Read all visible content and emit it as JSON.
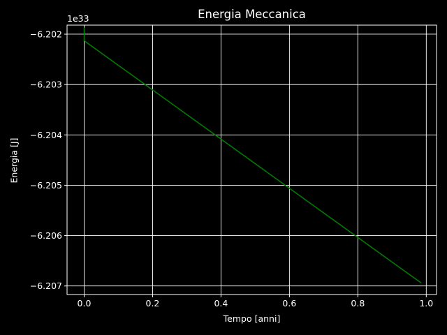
{
  "chart_data": {
    "type": "line",
    "title": "Energia Meccanica",
    "xlabel": "Tempo [anni]",
    "ylabel": "Energia [J]",
    "y_offset_label": "1e33",
    "xlim": [
      -0.05,
      1.03
    ],
    "ylim": [
      -6.20717,
      -6.20182
    ],
    "x_ticks": [
      0.0,
      0.2,
      0.4,
      0.6,
      0.8,
      1.0
    ],
    "x_tick_labels": [
      "0.0",
      "0.2",
      "0.4",
      "0.6",
      "0.8",
      "1.0"
    ],
    "y_ticks": [
      -6.202,
      -6.203,
      -6.204,
      -6.205,
      -6.206,
      -6.207
    ],
    "y_tick_labels": [
      "−6.202",
      "−6.203",
      "−6.204",
      "−6.205",
      "−6.206",
      "−6.207"
    ],
    "grid": true,
    "background": "#000000",
    "axis_color": "#ffffff",
    "series": [
      {
        "color": "#008000",
        "x": [
          0.0,
          0.0,
          0.985
        ],
        "y": [
          -6.20187,
          -6.20213,
          -6.20694
        ]
      }
    ]
  }
}
